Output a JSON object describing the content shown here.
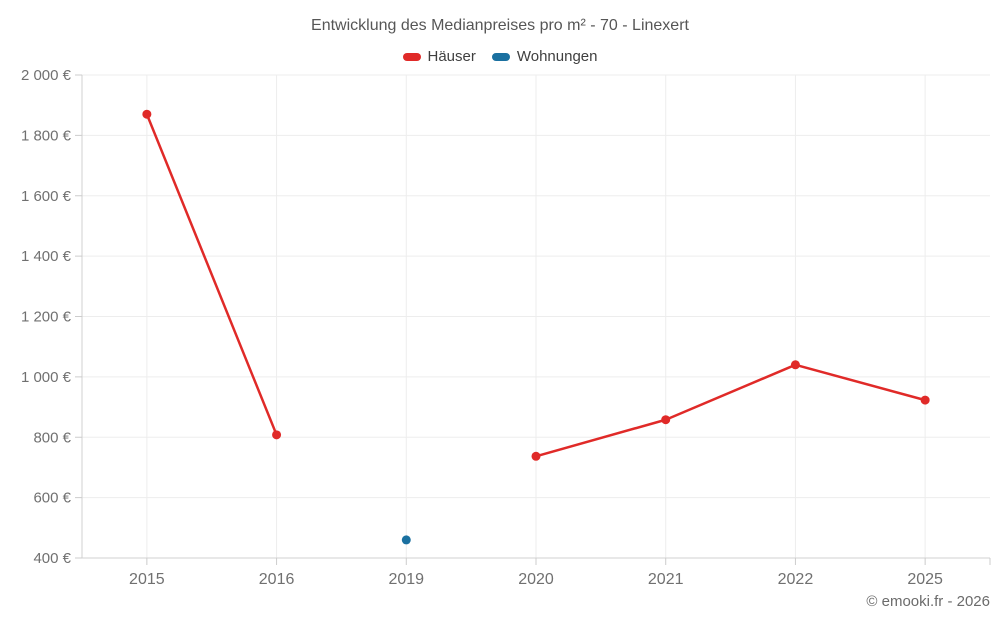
{
  "chart_data": {
    "type": "line",
    "title": "Entwicklung des Medianpreises pro m² - 70 - Linexert",
    "categories": [
      "2015",
      "2016",
      "2019",
      "2020",
      "2021",
      "2022",
      "2025"
    ],
    "series": [
      {
        "name": "Häuser",
        "color": "#e02a28",
        "values": [
          1870,
          808,
          null,
          737,
          858,
          1040,
          923
        ]
      },
      {
        "name": "Wohnungen",
        "color": "#1a70a0",
        "values": [
          null,
          null,
          460,
          null,
          null,
          null,
          null
        ]
      }
    ],
    "ylim": [
      400,
      2000
    ],
    "ytick_step": 200,
    "ytick_labels": [
      "400 €",
      "600 €",
      "800 €",
      "1 000 €",
      "1 200 €",
      "1 400 €",
      "1 600 €",
      "1 800 €",
      "2 000 €"
    ],
    "grid": true,
    "legend_position": "top",
    "colors": {
      "gridline": "#ededed",
      "axis_line": "#d0d0d0",
      "tick": "#cccccc",
      "axis_label": "#707070"
    }
  },
  "footer": {
    "copyright": "© emooki.fr - 2026"
  }
}
